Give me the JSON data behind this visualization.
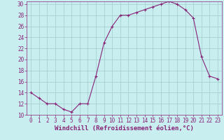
{
  "x": [
    0,
    1,
    2,
    3,
    4,
    5,
    6,
    7,
    8,
    9,
    10,
    11,
    12,
    13,
    14,
    15,
    16,
    17,
    18,
    19,
    20,
    21,
    22,
    23
  ],
  "y": [
    14,
    13,
    12,
    12,
    11,
    10.5,
    12,
    12,
    17,
    23,
    26,
    28,
    28,
    28.5,
    29,
    29.5,
    30,
    30.5,
    30,
    29,
    27.5,
    20.5,
    17,
    16.5
  ],
  "line_color": "#882277",
  "marker": "+",
  "bg_color": "#c8eef0",
  "grid_color": "#a0cccc",
  "xlabel": "Windchill (Refroidissement éolien,°C)",
  "ylim": [
    10,
    30.5
  ],
  "xlim": [
    -0.5,
    23.5
  ],
  "yticks": [
    10,
    12,
    14,
    16,
    18,
    20,
    22,
    24,
    26,
    28,
    30
  ],
  "xticks": [
    0,
    1,
    2,
    3,
    4,
    5,
    6,
    7,
    8,
    9,
    10,
    11,
    12,
    13,
    14,
    15,
    16,
    17,
    18,
    19,
    20,
    21,
    22,
    23
  ],
  "tick_color": "#882277",
  "label_color": "#882277",
  "xlabel_fontsize": 6.5,
  "tick_fontsize": 5.5,
  "linewidth": 0.8,
  "markersize": 3,
  "markeredgewidth": 0.8
}
